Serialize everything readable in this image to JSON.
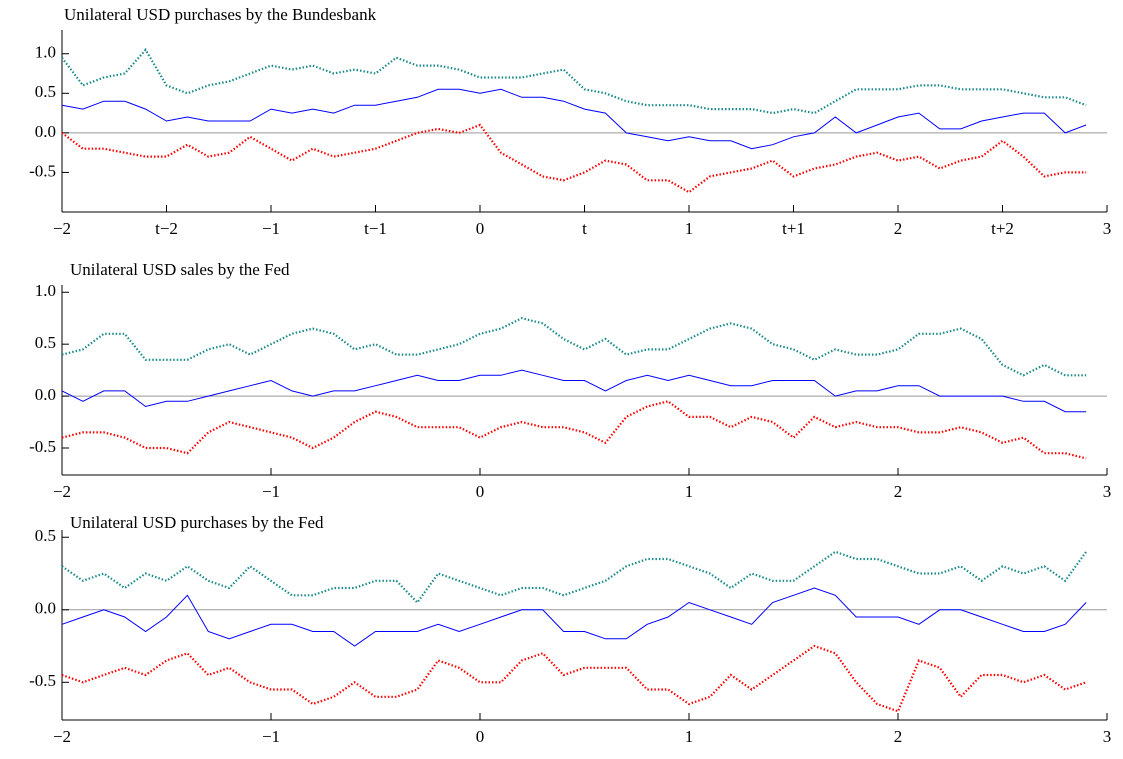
{
  "chart_data": [
    {
      "type": "line",
      "title": "Unilateral USD purchases by the Bundesbank",
      "x": [
        -2,
        -1.9,
        -1.8,
        -1.7,
        -1.6,
        -1.5,
        -1.4,
        -1.3,
        -1.2,
        -1.1,
        -1,
        -0.9,
        -0.8,
        -0.7,
        -0.6,
        -0.5,
        -0.4,
        -0.3,
        -0.2,
        -0.1,
        0,
        0.1,
        0.2,
        0.3,
        0.4,
        0.5,
        0.6,
        0.7,
        0.8,
        0.9,
        1,
        1.1,
        1.2,
        1.3,
        1.4,
        1.5,
        1.6,
        1.7,
        1.8,
        1.9,
        2,
        2.1,
        2.2,
        2.3,
        2.4,
        2.5,
        2.6,
        2.7,
        2.8,
        2.9
      ],
      "xlim": [
        -2,
        3
      ],
      "ylim": [
        -1.0,
        1.3
      ],
      "hline": 0,
      "xticks": [
        {
          "value": -2,
          "label": "−2"
        },
        {
          "value": -1.5,
          "label": "t−2"
        },
        {
          "value": -1,
          "label": "−1"
        },
        {
          "value": -0.5,
          "label": "t−1"
        },
        0,
        {
          "value": 0.5,
          "label": "t"
        },
        1,
        {
          "value": 1.5,
          "label": "t+1"
        },
        2,
        {
          "value": 2.5,
          "label": "t+2"
        },
        3
      ],
      "yticks": [
        -0.5,
        {
          "value": 0,
          "label": "0.0"
        },
        0.5,
        {
          "value": 1,
          "label": "1.0"
        }
      ],
      "series": [
        {
          "color": "#1a8a8a",
          "style": "dotted",
          "values": [
            0.95,
            0.6,
            0.7,
            0.75,
            1.05,
            0.6,
            0.5,
            0.6,
            0.65,
            0.75,
            0.85,
            0.8,
            0.85,
            0.75,
            0.8,
            0.75,
            0.95,
            0.85,
            0.85,
            0.8,
            0.7,
            0.7,
            0.7,
            0.75,
            0.8,
            0.55,
            0.5,
            0.4,
            0.35,
            0.35,
            0.35,
            0.3,
            0.3,
            0.3,
            0.25,
            0.3,
            0.25,
            0.4,
            0.55,
            0.55,
            0.55,
            0.6,
            0.6,
            0.55,
            0.55,
            0.55,
            0.5,
            0.45,
            0.45,
            0.35
          ]
        },
        {
          "color": "#0000ff",
          "style": "solid",
          "values": [
            0.35,
            0.3,
            0.4,
            0.4,
            0.3,
            0.15,
            0.2,
            0.15,
            0.15,
            0.15,
            0.3,
            0.25,
            0.3,
            0.25,
            0.35,
            0.35,
            0.4,
            0.45,
            0.55,
            0.55,
            0.5,
            0.55,
            0.45,
            0.45,
            0.4,
            0.3,
            0.25,
            0.0,
            -0.05,
            -0.1,
            -0.05,
            -0.1,
            -0.1,
            -0.2,
            -0.15,
            -0.05,
            0.0,
            0.2,
            0.0,
            0.1,
            0.2,
            0.25,
            0.05,
            0.05,
            0.15,
            0.2,
            0.25,
            0.25,
            0.0,
            0.1
          ]
        },
        {
          "color": "#ff0000",
          "style": "dotted",
          "values": [
            0.0,
            -0.2,
            -0.2,
            -0.25,
            -0.3,
            -0.3,
            -0.15,
            -0.3,
            -0.25,
            -0.05,
            -0.2,
            -0.35,
            -0.2,
            -0.3,
            -0.25,
            -0.2,
            -0.1,
            0.0,
            0.05,
            0.0,
            0.1,
            -0.25,
            -0.4,
            -0.55,
            -0.6,
            -0.5,
            -0.35,
            -0.4,
            -0.6,
            -0.6,
            -0.75,
            -0.55,
            -0.5,
            -0.45,
            -0.35,
            -0.55,
            -0.45,
            -0.4,
            -0.3,
            -0.25,
            -0.35,
            -0.3,
            -0.45,
            -0.35,
            -0.3,
            -0.1,
            -0.3,
            -0.55,
            -0.5,
            -0.5
          ]
        }
      ]
    },
    {
      "type": "line",
      "title": "Unilateral USD sales by the Fed",
      "x": [
        -2,
        -1.9,
        -1.8,
        -1.7,
        -1.6,
        -1.5,
        -1.4,
        -1.3,
        -1.2,
        -1.1,
        -1,
        -0.9,
        -0.8,
        -0.7,
        -0.6,
        -0.5,
        -0.4,
        -0.3,
        -0.2,
        -0.1,
        0,
        0.1,
        0.2,
        0.3,
        0.4,
        0.5,
        0.6,
        0.7,
        0.8,
        0.9,
        1,
        1.1,
        1.2,
        1.3,
        1.4,
        1.5,
        1.6,
        1.7,
        1.8,
        1.9,
        2,
        2.1,
        2.2,
        2.3,
        2.4,
        2.5,
        2.6,
        2.7,
        2.8,
        2.9
      ],
      "xlim": [
        -2,
        3
      ],
      "ylim": [
        -0.76,
        1.07
      ],
      "hline": 0,
      "xticks": [
        {
          "value": -2,
          "label": "−2"
        },
        {
          "value": -1,
          "label": "−1"
        },
        0,
        1,
        2,
        3
      ],
      "yticks": [
        -0.5,
        {
          "value": 0,
          "label": "0.0"
        },
        0.5,
        {
          "value": 1,
          "label": "1.0"
        }
      ],
      "series": [
        {
          "color": "#1a8a8a",
          "style": "dotted",
          "values": [
            0.4,
            0.45,
            0.6,
            0.6,
            0.35,
            0.35,
            0.35,
            0.45,
            0.5,
            0.4,
            0.5,
            0.6,
            0.65,
            0.6,
            0.45,
            0.5,
            0.4,
            0.4,
            0.45,
            0.5,
            0.6,
            0.65,
            0.75,
            0.7,
            0.55,
            0.45,
            0.55,
            0.4,
            0.45,
            0.45,
            0.55,
            0.65,
            0.7,
            0.65,
            0.5,
            0.45,
            0.35,
            0.45,
            0.4,
            0.4,
            0.45,
            0.6,
            0.6,
            0.65,
            0.55,
            0.3,
            0.2,
            0.3,
            0.2,
            0.2
          ]
        },
        {
          "color": "#0000ff",
          "style": "solid",
          "values": [
            0.05,
            -0.05,
            0.05,
            0.05,
            -0.1,
            -0.05,
            -0.05,
            0.0,
            0.05,
            0.1,
            0.15,
            0.05,
            0.0,
            0.05,
            0.05,
            0.1,
            0.15,
            0.2,
            0.15,
            0.15,
            0.2,
            0.2,
            0.25,
            0.2,
            0.15,
            0.15,
            0.05,
            0.15,
            0.2,
            0.15,
            0.2,
            0.15,
            0.1,
            0.1,
            0.15,
            0.15,
            0.15,
            0.0,
            0.05,
            0.05,
            0.1,
            0.1,
            0.0,
            0.0,
            0.0,
            0.0,
            -0.05,
            -0.05,
            -0.15,
            -0.15
          ]
        },
        {
          "color": "#ff0000",
          "style": "dotted",
          "values": [
            -0.4,
            -0.35,
            -0.35,
            -0.4,
            -0.5,
            -0.5,
            -0.55,
            -0.35,
            -0.25,
            -0.3,
            -0.35,
            -0.4,
            -0.5,
            -0.4,
            -0.25,
            -0.15,
            -0.2,
            -0.3,
            -0.3,
            -0.3,
            -0.4,
            -0.3,
            -0.25,
            -0.3,
            -0.3,
            -0.35,
            -0.45,
            -0.2,
            -0.1,
            -0.05,
            -0.2,
            -0.2,
            -0.3,
            -0.2,
            -0.25,
            -0.4,
            -0.2,
            -0.3,
            -0.25,
            -0.3,
            -0.3,
            -0.35,
            -0.35,
            -0.3,
            -0.35,
            -0.45,
            -0.4,
            -0.55,
            -0.55,
            -0.6
          ]
        }
      ]
    },
    {
      "type": "line",
      "title": "Unilateral USD purchases by the Fed",
      "x": [
        -2,
        -1.9,
        -1.8,
        -1.7,
        -1.6,
        -1.5,
        -1.4,
        -1.3,
        -1.2,
        -1.1,
        -1,
        -0.9,
        -0.8,
        -0.7,
        -0.6,
        -0.5,
        -0.4,
        -0.3,
        -0.2,
        -0.1,
        0,
        0.1,
        0.2,
        0.3,
        0.4,
        0.5,
        0.6,
        0.7,
        0.8,
        0.9,
        1,
        1.1,
        1.2,
        1.3,
        1.4,
        1.5,
        1.6,
        1.7,
        1.8,
        1.9,
        2,
        2.1,
        2.2,
        2.3,
        2.4,
        2.5,
        2.6,
        2.7,
        2.8,
        2.9
      ],
      "xlim": [
        -2,
        3
      ],
      "ylim": [
        -0.76,
        0.55
      ],
      "hline": 0,
      "xticks": [
        {
          "value": -2,
          "label": "−2"
        },
        {
          "value": -1,
          "label": "−1"
        },
        0,
        1,
        2,
        3
      ],
      "yticks": [
        -0.5,
        {
          "value": 0,
          "label": "0.0"
        },
        0.5
      ],
      "series": [
        {
          "color": "#1a8a8a",
          "style": "dotted",
          "values": [
            0.3,
            0.2,
            0.25,
            0.15,
            0.25,
            0.2,
            0.3,
            0.2,
            0.15,
            0.3,
            0.2,
            0.1,
            0.1,
            0.15,
            0.15,
            0.2,
            0.2,
            0.05,
            0.25,
            0.2,
            0.15,
            0.1,
            0.15,
            0.15,
            0.1,
            0.15,
            0.2,
            0.3,
            0.35,
            0.35,
            0.3,
            0.25,
            0.15,
            0.25,
            0.2,
            0.2,
            0.3,
            0.4,
            0.35,
            0.35,
            0.3,
            0.25,
            0.25,
            0.3,
            0.2,
            0.3,
            0.25,
            0.3,
            0.2,
            0.4
          ]
        },
        {
          "color": "#0000ff",
          "style": "solid",
          "values": [
            -0.1,
            -0.05,
            0.0,
            -0.05,
            -0.15,
            -0.05,
            0.1,
            -0.15,
            -0.2,
            -0.15,
            -0.1,
            -0.1,
            -0.15,
            -0.15,
            -0.25,
            -0.15,
            -0.15,
            -0.15,
            -0.1,
            -0.15,
            -0.1,
            -0.05,
            0.0,
            0.0,
            -0.15,
            -0.15,
            -0.2,
            -0.2,
            -0.1,
            -0.05,
            0.05,
            0.0,
            -0.05,
            -0.1,
            0.05,
            0.1,
            0.15,
            0.1,
            -0.05,
            -0.05,
            -0.05,
            -0.1,
            0.0,
            0.0,
            -0.05,
            -0.1,
            -0.15,
            -0.15,
            -0.1,
            0.05
          ]
        },
        {
          "color": "#ff0000",
          "style": "dotted",
          "values": [
            -0.45,
            -0.5,
            -0.45,
            -0.4,
            -0.45,
            -0.35,
            -0.3,
            -0.45,
            -0.4,
            -0.5,
            -0.55,
            -0.55,
            -0.65,
            -0.6,
            -0.5,
            -0.6,
            -0.6,
            -0.55,
            -0.35,
            -0.4,
            -0.5,
            -0.5,
            -0.35,
            -0.3,
            -0.45,
            -0.4,
            -0.4,
            -0.4,
            -0.55,
            -0.55,
            -0.65,
            -0.6,
            -0.45,
            -0.55,
            -0.45,
            -0.35,
            -0.25,
            -0.3,
            -0.5,
            -0.65,
            -0.7,
            -0.35,
            -0.4,
            -0.6,
            -0.45,
            -0.45,
            -0.5,
            -0.45,
            -0.55,
            -0.5
          ]
        }
      ]
    }
  ]
}
